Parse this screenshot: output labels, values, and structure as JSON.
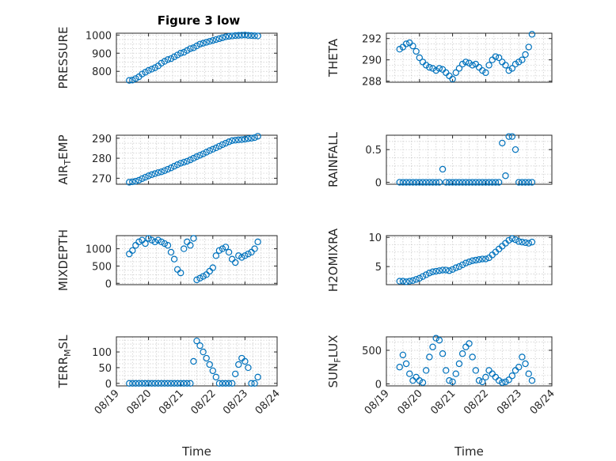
{
  "figure": {
    "title": "Figure 3 low"
  },
  "colors": {
    "marker": "#0072BD",
    "axis": "#262626",
    "grid": "#c8c8c8"
  },
  "chart_data": [
    {
      "type": "scatter",
      "id": "pressure",
      "title": "Figure 3 low",
      "ylabel": {
        "main": "PRESSURE",
        "sub": "",
        "rest": ""
      },
      "xlim": [
        0,
        5
      ],
      "ylim": [
        740,
        1010
      ],
      "yticks": [
        800,
        900,
        1000
      ],
      "yticklabels": [
        "800",
        "900",
        "1000"
      ],
      "xticks": [
        0,
        1,
        2,
        3,
        4,
        5
      ],
      "xticklabels": [
        "08/19",
        "08/20",
        "08/21",
        "08/22",
        "08/23",
        "08/24"
      ],
      "show_xticklabels": false,
      "xlabel": "",
      "grid": true,
      "x": [
        0.4,
        0.5,
        0.6,
        0.7,
        0.8,
        0.9,
        1.0,
        1.1,
        1.2,
        1.3,
        1.4,
        1.5,
        1.6,
        1.7,
        1.8,
        1.9,
        2.0,
        2.1,
        2.2,
        2.3,
        2.4,
        2.5,
        2.6,
        2.7,
        2.8,
        2.9,
        3.0,
        3.1,
        3.2,
        3.3,
        3.4,
        3.5,
        3.6,
        3.7,
        3.8,
        3.9,
        4.0,
        4.1,
        4.2,
        4.3,
        4.4
      ],
      "y": [
        750,
        752,
        760,
        770,
        785,
        795,
        805,
        812,
        820,
        830,
        845,
        855,
        865,
        870,
        880,
        890,
        900,
        905,
        915,
        925,
        930,
        940,
        950,
        955,
        960,
        965,
        970,
        975,
        980,
        985,
        990,
        993,
        995,
        997,
        998,
        999,
        1000,
        998,
        997,
        996,
        995
      ]
    },
    {
      "type": "scatter",
      "id": "theta",
      "ylabel": {
        "main": "THETA",
        "sub": "",
        "rest": ""
      },
      "xlim": [
        0,
        5
      ],
      "ylim": [
        287.9,
        292.5
      ],
      "yticks": [
        288,
        290,
        292
      ],
      "yticklabels": [
        "288",
        "290",
        "292"
      ],
      "xticks": [
        0,
        1,
        2,
        3,
        4,
        5
      ],
      "xticklabels": [
        "08/19",
        "08/20",
        "08/21",
        "08/22",
        "08/23",
        "08/24"
      ],
      "show_xticklabels": false,
      "xlabel": "",
      "grid": true,
      "x": [
        0.4,
        0.5,
        0.6,
        0.7,
        0.8,
        0.9,
        1.0,
        1.1,
        1.2,
        1.3,
        1.4,
        1.5,
        1.6,
        1.7,
        1.8,
        1.9,
        2.0,
        2.1,
        2.2,
        2.3,
        2.4,
        2.5,
        2.6,
        2.7,
        2.8,
        2.9,
        3.0,
        3.1,
        3.2,
        3.3,
        3.4,
        3.5,
        3.6,
        3.7,
        3.8,
        3.9,
        4.0,
        4.1,
        4.2,
        4.3,
        4.4
      ],
      "y": [
        291,
        291.2,
        291.5,
        291.6,
        291.3,
        290.8,
        290.2,
        289.8,
        289.5,
        289.3,
        289.2,
        289.0,
        289.2,
        289.1,
        288.8,
        288.5,
        288.2,
        288.8,
        289.2,
        289.6,
        289.8,
        289.7,
        289.5,
        289.6,
        289.3,
        289.0,
        288.8,
        289.5,
        290.0,
        290.3,
        290.2,
        289.8,
        289.5,
        289.0,
        289.2,
        289.6,
        289.8,
        290.0,
        290.5,
        291.2,
        292.4
      ]
    },
    {
      "type": "scatter",
      "id": "air_temp",
      "ylabel": {
        "main": "AIR",
        "sub": "T",
        "rest": "EMP"
      },
      "xlim": [
        0,
        5
      ],
      "ylim": [
        267,
        291.5
      ],
      "yticks": [
        270,
        280,
        290
      ],
      "yticklabels": [
        "270",
        "280",
        "290"
      ],
      "xticks": [
        0,
        1,
        2,
        3,
        4,
        5
      ],
      "xticklabels": [
        "08/19",
        "08/20",
        "08/21",
        "08/22",
        "08/23",
        "08/24"
      ],
      "show_xticklabels": false,
      "xlabel": "",
      "grid": true,
      "x": [
        0.4,
        0.5,
        0.6,
        0.7,
        0.8,
        0.9,
        1.0,
        1.1,
        1.2,
        1.3,
        1.4,
        1.5,
        1.6,
        1.7,
        1.8,
        1.9,
        2.0,
        2.1,
        2.2,
        2.3,
        2.4,
        2.5,
        2.6,
        2.7,
        2.8,
        2.9,
        3.0,
        3.1,
        3.2,
        3.3,
        3.4,
        3.5,
        3.6,
        3.7,
        3.8,
        3.9,
        4.0,
        4.1,
        4.2,
        4.3,
        4.4
      ],
      "y": [
        268,
        268.2,
        268.5,
        269,
        269.8,
        270.5,
        271.2,
        271.8,
        272.3,
        272.8,
        273.2,
        273.8,
        274.5,
        275.2,
        276,
        276.8,
        277.5,
        278,
        278.5,
        279.2,
        280,
        280.8,
        281.5,
        282.2,
        283,
        283.8,
        284.5,
        285.2,
        286,
        286.8,
        287.5,
        288.2,
        288.8,
        289,
        289.2,
        289.3,
        289.5,
        289.8,
        290,
        290.3,
        291
      ]
    },
    {
      "type": "scatter",
      "id": "rainfall",
      "ylabel": {
        "main": "RAINFALL",
        "sub": "",
        "rest": ""
      },
      "xlim": [
        0,
        5
      ],
      "ylim": [
        -0.03,
        0.72
      ],
      "yticks": [
        0,
        0.5
      ],
      "yticklabels": [
        "0",
        "0.5"
      ],
      "xticks": [
        0,
        1,
        2,
        3,
        4,
        5
      ],
      "xticklabels": [
        "08/19",
        "08/20",
        "08/21",
        "08/22",
        "08/23",
        "08/24"
      ],
      "show_xticklabels": false,
      "xlabel": "",
      "grid": true,
      "x": [
        0.4,
        0.5,
        0.6,
        0.7,
        0.8,
        0.9,
        1.0,
        1.1,
        1.2,
        1.3,
        1.4,
        1.5,
        1.6,
        1.7,
        1.8,
        1.9,
        2.0,
        2.1,
        2.2,
        2.3,
        2.4,
        2.5,
        2.6,
        2.7,
        2.8,
        2.9,
        3.0,
        3.1,
        3.2,
        3.3,
        3.4,
        3.5,
        3.6,
        3.7,
        3.8,
        3.9,
        4.0,
        4.1,
        4.2,
        4.3,
        4.4
      ],
      "y": [
        0,
        0,
        0,
        0,
        0,
        0,
        0,
        0,
        0,
        0,
        0,
        0,
        0,
        0.2,
        0,
        0,
        0,
        0,
        0,
        0,
        0,
        0,
        0,
        0,
        0,
        0,
        0,
        0,
        0,
        0,
        0,
        0.6,
        0.1,
        0.7,
        0.7,
        0.5,
        0,
        0,
        0,
        0,
        0
      ]
    },
    {
      "type": "scatter",
      "id": "mixdepth",
      "ylabel": {
        "main": "MIXDEPTH",
        "sub": "",
        "rest": ""
      },
      "xlim": [
        0,
        5
      ],
      "ylim": [
        -40,
        1380
      ],
      "yticks": [
        0,
        500,
        1000
      ],
      "yticklabels": [
        "0",
        "500",
        "1000"
      ],
      "xticks": [
        0,
        1,
        2,
        3,
        4,
        5
      ],
      "xticklabels": [
        "08/19",
        "08/20",
        "08/21",
        "08/22",
        "08/23",
        "08/24"
      ],
      "show_xticklabels": false,
      "xlabel": "",
      "grid": true,
      "x": [
        0.4,
        0.5,
        0.6,
        0.7,
        0.8,
        0.9,
        1.0,
        1.1,
        1.2,
        1.3,
        1.4,
        1.5,
        1.6,
        1.7,
        1.8,
        1.9,
        2.0,
        2.1,
        2.2,
        2.3,
        2.4,
        2.5,
        2.6,
        2.7,
        2.8,
        2.9,
        3.0,
        3.1,
        3.2,
        3.3,
        3.4,
        3.5,
        3.6,
        3.7,
        3.8,
        3.9,
        4.0,
        4.1,
        4.2,
        4.3,
        4.4
      ],
      "y": [
        850,
        950,
        1100,
        1200,
        1250,
        1150,
        1300,
        1250,
        1200,
        1250,
        1200,
        1150,
        1100,
        900,
        700,
        400,
        300,
        1000,
        1200,
        1100,
        1300,
        100,
        150,
        200,
        250,
        350,
        450,
        800,
        950,
        1000,
        1050,
        900,
        700,
        600,
        800,
        750,
        800,
        850,
        900,
        1000,
        1200
      ]
    },
    {
      "type": "scatter",
      "id": "h2omixra",
      "ylabel": {
        "main": "H2OMIXRA",
        "sub": "",
        "rest": ""
      },
      "xlim": [
        0,
        5
      ],
      "ylim": [
        1.9,
        10.3
      ],
      "yticks": [
        5,
        10
      ],
      "yticklabels": [
        "5",
        "10"
      ],
      "xticks": [
        0,
        1,
        2,
        3,
        4,
        5
      ],
      "xticklabels": [
        "08/19",
        "08/20",
        "08/21",
        "08/22",
        "08/23",
        "08/24"
      ],
      "show_xticklabels": false,
      "xlabel": "",
      "grid": true,
      "x": [
        0.4,
        0.5,
        0.6,
        0.7,
        0.8,
        0.9,
        1.0,
        1.1,
        1.2,
        1.3,
        1.4,
        1.5,
        1.6,
        1.7,
        1.8,
        1.9,
        2.0,
        2.1,
        2.2,
        2.3,
        2.4,
        2.5,
        2.6,
        2.7,
        2.8,
        2.9,
        3.0,
        3.1,
        3.2,
        3.3,
        3.4,
        3.5,
        3.6,
        3.7,
        3.8,
        3.9,
        4.0,
        4.1,
        4.2,
        4.3,
        4.4
      ],
      "y": [
        2.5,
        2.5,
        2.4,
        2.5,
        2.6,
        2.8,
        3.0,
        3.3,
        3.6,
        3.9,
        4.1,
        4.2,
        4.3,
        4.4,
        4.4,
        4.3,
        4.5,
        4.8,
        5.0,
        5.3,
        5.6,
        5.8,
        6.0,
        6.1,
        6.2,
        6.3,
        6.3,
        6.5,
        7.0,
        7.5,
        8.0,
        8.5,
        9.0,
        9.5,
        9.8,
        9.6,
        9.3,
        9.2,
        9.1,
        9.0,
        9.2
      ]
    },
    {
      "type": "scatter",
      "id": "terr_msl",
      "ylabel": {
        "main": "TERR",
        "sub": "M",
        "rest": "SL"
      },
      "xlim": [
        0,
        5
      ],
      "ylim": [
        -8,
        148
      ],
      "yticks": [
        0,
        50,
        100
      ],
      "yticklabels": [
        "0",
        "50",
        "100"
      ],
      "xticks": [
        0,
        1,
        2,
        3,
        4,
        5
      ],
      "xticklabels": [
        "08/19",
        "08/20",
        "08/21",
        "08/22",
        "08/23",
        "08/24"
      ],
      "show_xticklabels": true,
      "xlabel": "Time",
      "grid": true,
      "x": [
        0.4,
        0.5,
        0.6,
        0.7,
        0.8,
        0.9,
        1.0,
        1.1,
        1.2,
        1.3,
        1.4,
        1.5,
        1.6,
        1.7,
        1.8,
        1.9,
        2.0,
        2.1,
        2.2,
        2.3,
        2.4,
        2.5,
        2.6,
        2.7,
        2.8,
        2.9,
        3.0,
        3.1,
        3.2,
        3.3,
        3.4,
        3.5,
        3.6,
        3.7,
        3.8,
        3.9,
        4.0,
        4.1,
        4.2,
        4.3,
        4.4
      ],
      "y": [
        0,
        0,
        0,
        0,
        0,
        0,
        0,
        0,
        0,
        0,
        0,
        0,
        0,
        0,
        0,
        0,
        0,
        0,
        0,
        0,
        70,
        135,
        120,
        100,
        80,
        60,
        40,
        20,
        0,
        0,
        0,
        0,
        0,
        30,
        60,
        80,
        70,
        50,
        0,
        0,
        20
      ]
    },
    {
      "type": "scatter",
      "id": "sun_flux",
      "ylabel": {
        "main": "SUN",
        "sub": "F",
        "rest": "LUX"
      },
      "xlim": [
        0,
        5
      ],
      "ylim": [
        -30,
        700
      ],
      "yticks": [
        0,
        500
      ],
      "yticklabels": [
        "0",
        "500"
      ],
      "xticks": [
        0,
        1,
        2,
        3,
        4,
        5
      ],
      "xticklabels": [
        "08/19",
        "08/20",
        "08/21",
        "08/22",
        "08/23",
        "08/24"
      ],
      "show_xticklabels": true,
      "xlabel": "Time",
      "grid": true,
      "x": [
        0.4,
        0.5,
        0.6,
        0.7,
        0.8,
        0.9,
        1.0,
        1.1,
        1.2,
        1.3,
        1.4,
        1.5,
        1.6,
        1.7,
        1.8,
        1.9,
        2.0,
        2.1,
        2.2,
        2.3,
        2.4,
        2.5,
        2.6,
        2.7,
        2.8,
        2.9,
        3.0,
        3.1,
        3.2,
        3.3,
        3.4,
        3.5,
        3.6,
        3.7,
        3.8,
        3.9,
        4.0,
        4.1,
        4.2,
        4.3,
        4.4
      ],
      "y": [
        250,
        430,
        300,
        150,
        50,
        100,
        50,
        20,
        200,
        400,
        550,
        680,
        650,
        450,
        200,
        50,
        30,
        150,
        300,
        450,
        550,
        600,
        400,
        200,
        50,
        30,
        100,
        200,
        150,
        100,
        50,
        20,
        30,
        60,
        120,
        200,
        250,
        400,
        300,
        150,
        50
      ]
    }
  ]
}
